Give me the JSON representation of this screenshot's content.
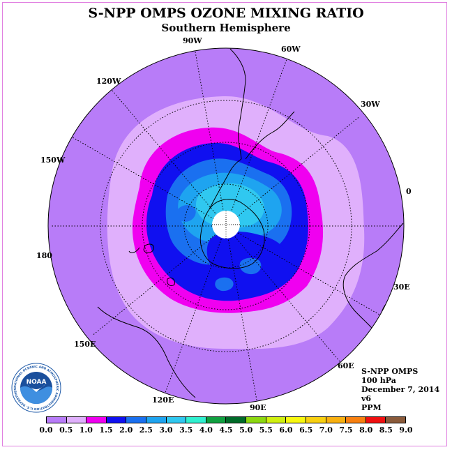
{
  "title": "S-NPP OMPS OZONE MIXING RATIO",
  "subtitle": "Southern Hemisphere",
  "longitude_labels": [
    "90W",
    "60W",
    "30W",
    "0",
    "30E",
    "60E",
    "90E",
    "120E",
    "150E",
    "180",
    "150W",
    "120W"
  ],
  "info": {
    "instrument": "S-NPP OMPS",
    "level": "100 hPa",
    "date": "December 7, 2014",
    "version": "v6",
    "units": "PPM"
  },
  "logo": {
    "text": "NOAA",
    "ring_text": "NATIONAL OCEANIC AND ATMOSPHERIC ADMINISTRATION U.S. DEPARTMENT OF COMMERCE"
  },
  "colorbar": {
    "ticks": [
      "0.0",
      "0.5",
      "1.0",
      "1.5",
      "2.0",
      "2.5",
      "3.0",
      "3.5",
      "4.0",
      "4.5",
      "5.0",
      "5.5",
      "6.0",
      "6.5",
      "7.0",
      "7.5",
      "8.0",
      "8.5",
      "9.0"
    ],
    "colors": [
      "#b87cf8",
      "#e0b0fc",
      "#f000f0",
      "#1010f0",
      "#1a70f0",
      "#1ea4f0",
      "#30c8f0",
      "#30f0d0",
      "#10a040",
      "#006a28",
      "#8cd810",
      "#d0f010",
      "#f8f810",
      "#f8d010",
      "#f8b010",
      "#f88010",
      "#f01010",
      "#8a5a3a"
    ]
  }
}
